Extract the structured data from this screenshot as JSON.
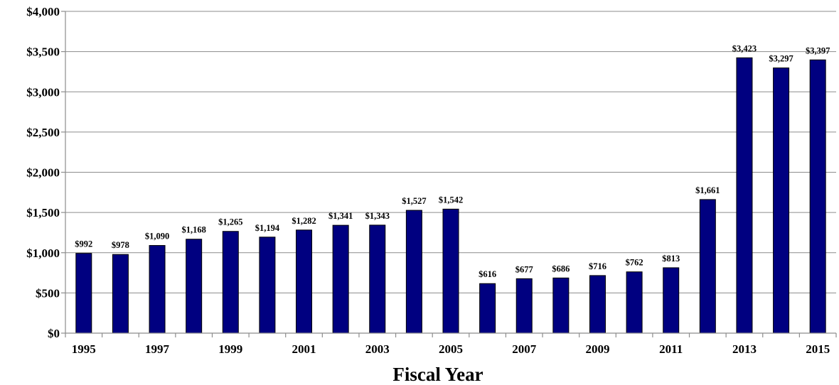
{
  "chart_data": {
    "type": "bar",
    "title": "",
    "xlabel": "Fiscal Year",
    "ylabel": "",
    "ylim": [
      0,
      4000
    ],
    "yticks": [
      0,
      500,
      1000,
      1500,
      2000,
      2500,
      3000,
      3500,
      4000
    ],
    "ytick_labels": [
      "$0",
      "$500",
      "$1,000",
      "$1,500",
      "$2,000",
      "$2,500",
      "$3,000",
      "$3,500",
      "$4,000"
    ],
    "categories": [
      "1995",
      "1996",
      "1997",
      "1998",
      "1999",
      "2000",
      "2001",
      "2002",
      "2003",
      "2004",
      "2005",
      "2006",
      "2007",
      "2008",
      "2009",
      "2010",
      "2011",
      "2012",
      "2013",
      "2014",
      "2015"
    ],
    "xtick_labels": [
      "1995",
      "",
      "1997",
      "",
      "1999",
      "",
      "2001",
      "",
      "2003",
      "",
      "2005",
      "",
      "2007",
      "",
      "2009",
      "",
      "2011",
      "",
      "2013",
      "",
      "2015"
    ],
    "values": [
      992,
      978,
      1090,
      1168,
      1265,
      1194,
      1282,
      1341,
      1343,
      1527,
      1542,
      616,
      677,
      686,
      716,
      762,
      813,
      1661,
      3423,
      3297,
      3397
    ],
    "data_labels": [
      "$992",
      "$978",
      "$1,090",
      "$1,168",
      "$1,265",
      "$1,194",
      "$1,282",
      "$1,341",
      "$1,343",
      "$1,527",
      "$1,542",
      "$616",
      "$677",
      "$686",
      "$716",
      "$762",
      "$813",
      "$1,661",
      "$3,423",
      "$3,297",
      "$3,397"
    ],
    "bar_color": "#000080",
    "grid": true,
    "legend": "none"
  }
}
